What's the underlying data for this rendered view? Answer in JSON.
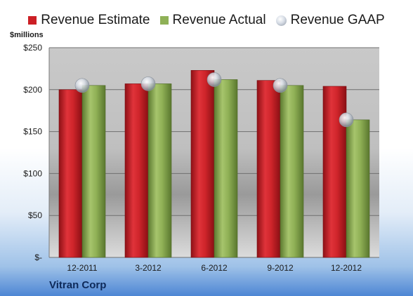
{
  "chart_data": {
    "type": "bar",
    "title": "",
    "company": "Vitran Corp",
    "unit_label": "$millions",
    "ylabel": "",
    "xlabel": "",
    "categories": [
      "12-2011",
      "3-2012",
      "6-2012",
      "9-2012",
      "12-2012"
    ],
    "series": [
      {
        "name": "Revenue Estimate",
        "kind": "bar",
        "color": "#cc1f25",
        "values": [
          200,
          207,
          223,
          211,
          204
        ]
      },
      {
        "name": "Revenue Actual",
        "kind": "bar",
        "color": "#8fb157",
        "values": [
          205,
          207,
          212,
          205,
          164
        ]
      },
      {
        "name": "Revenue GAAP",
        "kind": "marker",
        "color": "#c8cfd9",
        "values": [
          205,
          207,
          212,
          205,
          164
        ]
      }
    ],
    "ylim": [
      0,
      250
    ],
    "yticks": [
      0,
      50,
      100,
      150,
      200,
      250
    ],
    "ytick_labels": [
      "$-",
      "$50",
      "$100",
      "$150",
      "$200",
      "$250"
    ],
    "grid": true,
    "legend_position": "top"
  }
}
